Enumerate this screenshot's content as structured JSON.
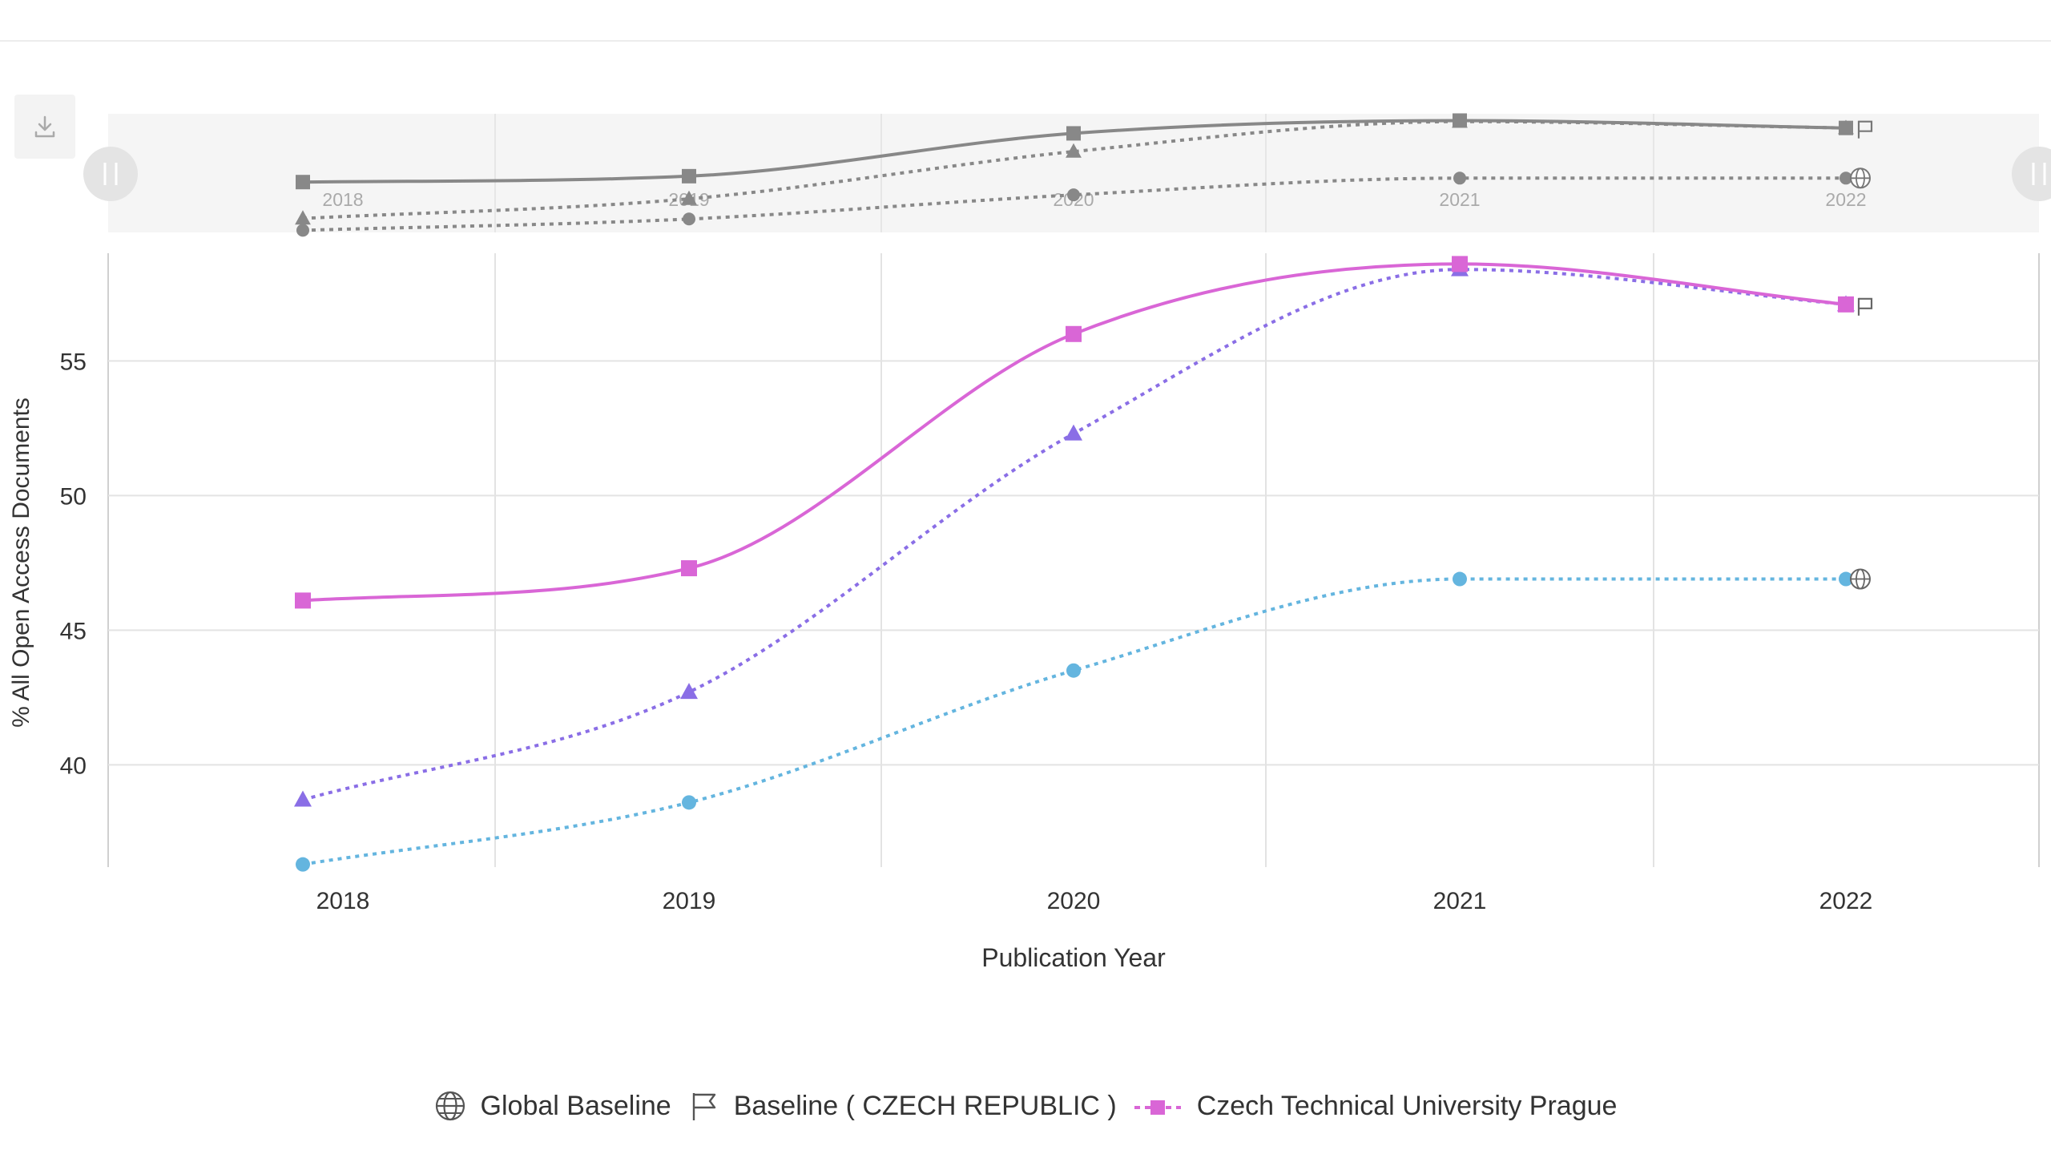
{
  "toolbar": {
    "download_icon": "download-icon"
  },
  "legend": {
    "global_label": "Global Baseline",
    "global_icon": "globe-icon",
    "country_label": "Baseline ( CZECH REPUBLIC )",
    "country_icon": "flag-icon",
    "inst_label": "Czech Technical University Prague"
  },
  "colors": {
    "institution": "#d966d6",
    "country": "#8a6ee6",
    "global": "#64b5df",
    "navigator": "#888888",
    "grid": "#e3e3e3"
  },
  "chart_data": {
    "type": "line",
    "x": [
      "2018",
      "2019",
      "2020",
      "2021",
      "2022"
    ],
    "xlabel": "Publication Year",
    "ylabel": "% All Open Access Documents",
    "yticks": [
      40,
      45,
      50,
      55
    ],
    "ylim": [
      36.2,
      59
    ],
    "grid": true,
    "legend_position": "bottom-center",
    "navigator": true,
    "series": [
      {
        "name": "Czech Technical University Prague",
        "style": "solid",
        "marker": "square",
        "values": [
          46.1,
          47.3,
          56.0,
          58.6,
          57.1
        ]
      },
      {
        "name": "Baseline ( CZECH REPUBLIC )",
        "style": "dotted",
        "marker": "triangle",
        "values": [
          38.7,
          42.7,
          52.3,
          58.4,
          57.1
        ]
      },
      {
        "name": "Global Baseline",
        "style": "dotted",
        "marker": "circle",
        "values": [
          36.3,
          38.6,
          43.5,
          46.9,
          46.9
        ]
      }
    ]
  }
}
